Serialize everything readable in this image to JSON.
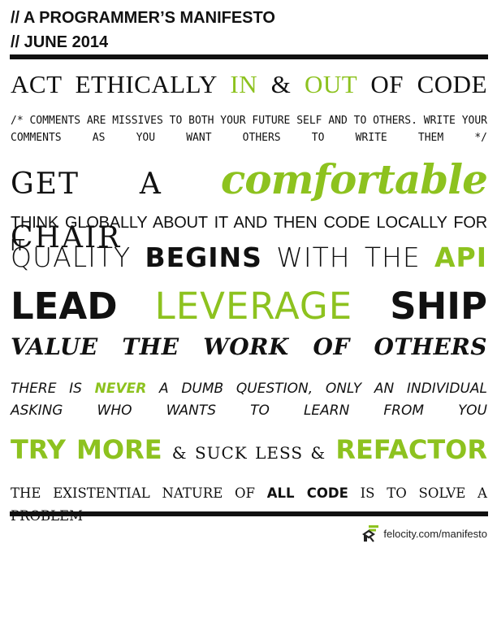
{
  "header": {
    "line1": "// A PROGRAMMER’S MANIFESTO",
    "line2": "// JUNE 2014"
  },
  "colors": {
    "accent": "#8dc21f",
    "text": "#111111"
  },
  "manifesto": {
    "ethics": {
      "a": "ACT ETHICALLY ",
      "b": "IN",
      "c": " & ",
      "d": "OUT",
      "e": " OF CODE"
    },
    "comment": "/* COMMENTS ARE MISSIVES TO BOTH YOUR FUTURE SELF AND TO OTHERS. WRITE YOUR COMMENTS AS YOU WANT OTHERS TO WRITE THEM */",
    "chair": {
      "a": "GET A",
      "b": "comfortable",
      "c": "CHAIR"
    },
    "global": "THINK GLOBALLY ABOUT IT AND THEN CODE LOCALLY FOR IT",
    "quality": {
      "a": "QUALITY",
      "b": "BEGINS",
      "c": "WITH THE",
      "d": "API"
    },
    "lead": {
      "a": "LEAD",
      "b": "LEVERAGE",
      "c": "SHIP"
    },
    "value": "VALUE THE WORK OF OTHERS",
    "question": {
      "a": "THERE IS ",
      "b": "NEVER",
      "c": " A DUMB QUESTION, ONLY AN INDIVIDUAL ASKING WHO WANTS TO LEARN FROM YOU"
    },
    "try": {
      "a": "TRY MORE",
      "b": "& SUCK LESS &",
      "c": "REFACTOR"
    },
    "nature": {
      "a": "THE EXISTENTIAL NATURE OF ",
      "b": "ALL CODE",
      "c": " IS TO SOLVE A PROBLEM"
    }
  },
  "footer": {
    "url": "felocity.com/manifesto",
    "icon": "felocity-logo-icon"
  }
}
